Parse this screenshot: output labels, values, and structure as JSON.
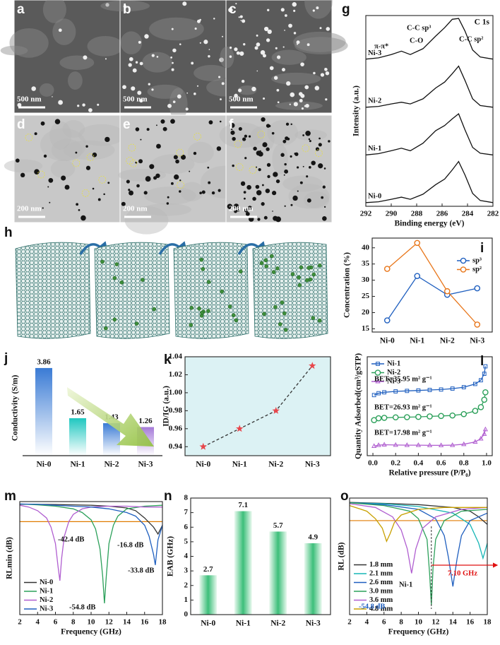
{
  "images": [
    {
      "label": "a",
      "scale_bar": "500 nm"
    },
    {
      "label": "b",
      "scale_bar": "500 nm"
    },
    {
      "label": "c",
      "scale_bar": "500 nm"
    },
    {
      "label": "d",
      "scale_bar": "200 nm"
    },
    {
      "label": "e",
      "scale_bar": "200 nm"
    },
    {
      "label": "f",
      "scale_bar": "200 nm"
    }
  ],
  "diagram": {
    "label": "h"
  },
  "chart_data": [
    {
      "label": "g",
      "type": "line",
      "offset": true,
      "title": "C 1s",
      "xlabel": "Binding energy (eV)",
      "ylabel": "Intensity (a.u.)",
      "xlim": [
        292,
        282
      ],
      "xticks": [
        292,
        290,
        288,
        286,
        284,
        282
      ],
      "x": [
        292,
        291,
        290,
        289.2,
        288.5,
        287.5,
        286.5,
        285.8,
        285.2,
        284.7,
        284.2,
        283.6,
        283,
        282
      ],
      "annotations": [
        {
          "text": "π-π*"
        },
        {
          "text": "C-O"
        },
        {
          "text": "C-C sp³"
        },
        {
          "text": "C-C sp²"
        }
      ],
      "series": [
        {
          "name": "Ni-3",
          "color": "#111111",
          "values": [
            0.03,
            0.06,
            0.14,
            0.22,
            0.14,
            0.28,
            0.58,
            0.78,
            0.98,
            1,
            0.7,
            0.25,
            0.08,
            0.03
          ]
        },
        {
          "name": "Ni-2",
          "color": "#111111",
          "values": [
            0.02,
            0.04,
            0.1,
            0.14,
            0.1,
            0.22,
            0.48,
            0.62,
            0.82,
            1,
            0.66,
            0.22,
            0.06,
            0.02
          ]
        },
        {
          "name": "Ni-1",
          "color": "#111111",
          "values": [
            0.02,
            0.05,
            0.12,
            0.18,
            0.12,
            0.3,
            0.6,
            0.72,
            0.88,
            1,
            0.62,
            0.2,
            0.06,
            0.02
          ]
        },
        {
          "name": "Ni-0",
          "color": "#111111",
          "values": [
            0.02,
            0.04,
            0.1,
            0.15,
            0.1,
            0.22,
            0.45,
            0.58,
            0.8,
            1,
            0.68,
            0.24,
            0.07,
            0.02
          ]
        }
      ]
    },
    {
      "label": "i",
      "type": "line",
      "ylabel": "Concentration (%)",
      "categories": [
        "Ni-0",
        "Ni-1",
        "Ni-2",
        "Ni-3"
      ],
      "ylim": [
        14,
        43
      ],
      "yticks": [
        15,
        20,
        25,
        30,
        35,
        40
      ],
      "legend": "upper right",
      "series": [
        {
          "name": "sp³",
          "color": "#1f5fbf",
          "marker": "circle",
          "values": [
            17.6,
            31.3,
            25.5,
            27.5
          ]
        },
        {
          "name": "sp²",
          "color": "#e8761a",
          "marker": "circle",
          "values": [
            33.5,
            41.5,
            26.6,
            16.3
          ]
        }
      ]
    },
    {
      "label": "j",
      "type": "bar",
      "ylabel": "Conductivity (S/m)",
      "categories": [
        "Ni-0",
        "Ni-1",
        "Ni-2",
        "Ni-3"
      ],
      "ylim": [
        0,
        4.2
      ],
      "values": [
        3.86,
        1.65,
        1.43,
        1.26
      ],
      "colors": [
        "#3a7bd5",
        "#1fc7c0",
        "#3a7bd5",
        "#a57ad8"
      ]
    },
    {
      "label": "k",
      "type": "line",
      "ylabel": "ID/IG (a.u.)",
      "categories": [
        "Ni-0",
        "Ni-1",
        "Ni-2",
        "Ni-3"
      ],
      "ylim": [
        0.93,
        1.04
      ],
      "yticks": [
        0.94,
        0.96,
        0.98,
        {
          "value": 1,
          "label": "1.00"
        },
        1.02,
        1.04
      ],
      "values": [
        0.94,
        0.96,
        0.98,
        1.03
      ],
      "color": "#e8474c",
      "line_color": "#333333",
      "line_style": "dashed",
      "marker": "star",
      "background": "#dcf2f4"
    },
    {
      "label": "l",
      "type": "line",
      "xlabel": "Relative pressure (P/P₀)",
      "ylabel": "Quantity Adsorbed(cm³/gSTP)",
      "xlim": [
        -0.05,
        1.05
      ],
      "xticks": [
        {
          "value": 0,
          "label": "0.0"
        },
        0.2,
        0.4,
        0.6,
        0.8,
        {
          "value": 1,
          "label": "1.0"
        }
      ],
      "legend": "upper left",
      "x": [
        0.01,
        0.05,
        0.1,
        0.2,
        0.3,
        0.4,
        0.5,
        0.6,
        0.7,
        0.8,
        0.9,
        0.95,
        0.98,
        0.99
      ],
      "annotations": [
        {
          "text": "BET=35.95 m² g⁻¹"
        },
        {
          "text": "BET=26.93 m² g⁻¹"
        },
        {
          "text": "BET=17.98 m² g⁻¹"
        }
      ],
      "series": [
        {
          "name": "Ni-1",
          "color": "#1f5fbf",
          "marker": "square",
          "values": [
            7.5,
            7.7,
            7.8,
            7.9,
            7.95,
            8.0,
            8.05,
            8.1,
            8.2,
            8.35,
            8.7,
            9.1,
            9.8,
            10.6
          ]
        },
        {
          "name": "Ni-2",
          "color": "#2ca05a",
          "marker": "circle",
          "values": [
            4.8,
            5.0,
            5.05,
            5.1,
            5.12,
            5.15,
            5.2,
            5.25,
            5.3,
            5.45,
            5.8,
            6.2,
            7.0,
            7.8
          ]
        },
        {
          "name": "Ni-3",
          "color": "#b05ed0",
          "marker": "triangle",
          "values": [
            2.0,
            2.1,
            2.15,
            2.12,
            2.1,
            2.1,
            2.08,
            2.08,
            2.1,
            2.2,
            2.45,
            2.8,
            3.3,
            3.8
          ]
        }
      ]
    },
    {
      "label": "m",
      "type": "line",
      "xlabel": "Frequency (GHz)",
      "ylabel": "RLmin (dB)",
      "xlim": [
        2,
        18
      ],
      "xticks": [
        2,
        4,
        6,
        8,
        10,
        12,
        14,
        16,
        18
      ],
      "ylim": [
        -61,
        1
      ],
      "ref_line": {
        "value": -10,
        "color": "#e07b00"
      },
      "legend": "lower left",
      "annotations": [
        {
          "text": "-42.4 dB"
        },
        {
          "text": "-54.8 dB"
        },
        {
          "text": "-16.8 dB"
        },
        {
          "text": "-33.8 dB"
        }
      ],
      "series": [
        {
          "name": "Ni-0",
          "color": "#333333",
          "x": [
            2,
            4,
            6,
            8,
            10,
            12,
            14,
            15,
            16,
            17,
            17.5,
            18
          ],
          "values": [
            -0.5,
            -0.5,
            -0.6,
            -0.8,
            -1,
            -1.5,
            -2.5,
            -4,
            -8,
            -13,
            -16.8,
            -12
          ]
        },
        {
          "name": "Ni-1",
          "color": "#2ca05a",
          "x": [
            2,
            4,
            6,
            8,
            9,
            10,
            10.5,
            11,
            11.3,
            11.5,
            11.7,
            12,
            12.5,
            13,
            14,
            16,
            18
          ],
          "values": [
            -0.3,
            -0.8,
            -1.5,
            -3,
            -5,
            -9,
            -14,
            -25,
            -40,
            -54.8,
            -40,
            -22,
            -12,
            -7,
            -3,
            -1.5,
            -1
          ]
        },
        {
          "name": "Ni-2",
          "color": "#b05ed0",
          "x": [
            2,
            3,
            4,
            5,
            5.5,
            6,
            6.3,
            6.5,
            6.7,
            7,
            7.5,
            8,
            9,
            10,
            12,
            14,
            16,
            18
          ],
          "values": [
            -1,
            -2,
            -4,
            -8,
            -13,
            -22,
            -35,
            -42.4,
            -30,
            -18,
            -10,
            -6,
            -3,
            -2,
            -1.5,
            -1.5,
            -2,
            -2
          ]
        },
        {
          "name": "Ni-3",
          "color": "#1f5fbf",
          "x": [
            2,
            4,
            6,
            8,
            10,
            12,
            14,
            15,
            16,
            16.5,
            17,
            17.2,
            17.5,
            18
          ],
          "values": [
            -0.3,
            -0.5,
            -1,
            -1.5,
            -2,
            -3,
            -5,
            -7,
            -12,
            -18,
            -28,
            -33.8,
            -20,
            -12
          ]
        }
      ]
    },
    {
      "label": "n",
      "type": "bar",
      "ylabel": "EAB (GHz)",
      "categories": [
        "Ni-0",
        "Ni-1",
        "Ni-2",
        "Ni-3"
      ],
      "ylim": [
        0,
        8
      ],
      "yticks": [
        0,
        1,
        2,
        3,
        4,
        5,
        6,
        7,
        8
      ],
      "values": [
        2.7,
        7.1,
        5.7,
        4.9
      ],
      "color": "#3cbf7a"
    },
    {
      "label": "o",
      "type": "line",
      "xlabel": "Frequency (GHz)",
      "ylabel": "RL (dB)",
      "xlim": [
        2,
        18
      ],
      "xticks": [
        2,
        4,
        6,
        8,
        10,
        12,
        14,
        16,
        18
      ],
      "ylim": [
        -60,
        2
      ],
      "ref_line": {
        "value": -10,
        "color": "#e07b00"
      },
      "legend": "lower left",
      "annotations": [
        {
          "text": "Ni-1",
          "color": "#111111"
        },
        {
          "text": "-54.8 dB",
          "color": "#1f5fbf"
        },
        {
          "text": "7.10 GHz",
          "color": "#e01010"
        }
      ],
      "series": [
        {
          "name": "1.8 mm",
          "color": "#333333",
          "x": [
            2,
            6,
            10,
            14,
            16,
            17,
            18
          ],
          "values": [
            -0.3,
            -0.8,
            -1.5,
            -3,
            -5,
            -8,
            -12
          ]
        },
        {
          "name": "2.1 mm",
          "color": "#17b5b5",
          "x": [
            2,
            6,
            10,
            14,
            16,
            17,
            17.5,
            18
          ],
          "values": [
            -0.5,
            -1,
            -2.5,
            -6,
            -12,
            -22,
            -30,
            -22
          ]
        },
        {
          "name": "2.6 mm",
          "color": "#1f5fbf",
          "x": [
            2,
            6,
            10,
            12,
            13,
            13.5,
            14,
            14.5,
            15,
            16,
            18
          ],
          "values": [
            -0.5,
            -1.5,
            -4,
            -9,
            -18,
            -30,
            -45,
            -30,
            -18,
            -10,
            -6
          ]
        },
        {
          "name": "3.0 mm",
          "color": "#2ca05a",
          "x": [
            2,
            6,
            9,
            10,
            11,
            11.3,
            11.5,
            11.7,
            12,
            13,
            15,
            18
          ],
          "values": [
            -0.5,
            -2,
            -5,
            -9,
            -20,
            -38,
            -54.8,
            -35,
            -20,
            -10,
            -5,
            -4
          ]
        },
        {
          "name": "3.6 mm",
          "color": "#b05ed0",
          "x": [
            2,
            5,
            7,
            8,
            8.7,
            9.2,
            9.7,
            10.5,
            12,
            15,
            18
          ],
          "values": [
            -1,
            -3,
            -8,
            -15,
            -25,
            -38,
            -25,
            -14,
            -8,
            -4,
            -3
          ]
        },
        {
          "name": "4.8 mm",
          "color": "#c8a000",
          "x": [
            2,
            4,
            5,
            5.8,
            6.3,
            6.7,
            7.2,
            8,
            10,
            13,
            18
          ],
          "values": [
            -2,
            -5,
            -9,
            -14,
            -21,
            -17,
            -11,
            -7,
            -4,
            -3,
            -3
          ]
        }
      ]
    }
  ]
}
